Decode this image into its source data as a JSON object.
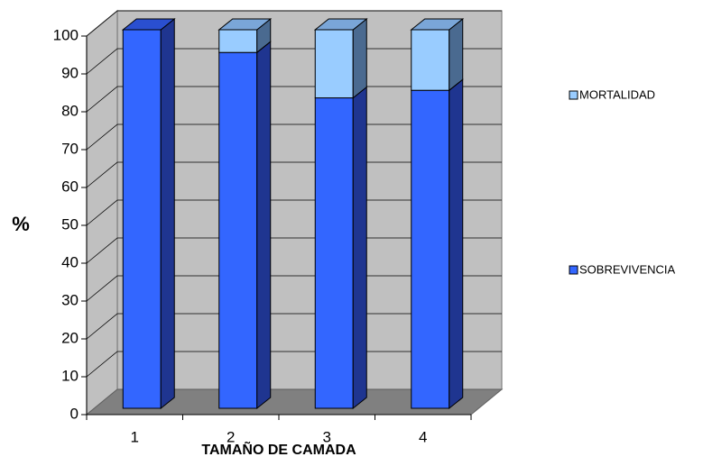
{
  "chart_data": {
    "type": "bar",
    "stacked": true,
    "style": "3d-column",
    "categories": [
      "1",
      "2",
      "3",
      "4"
    ],
    "series": [
      {
        "name": "SOBREVIVENCIA",
        "values": [
          100,
          94,
          82,
          84
        ],
        "color": "#3366ff",
        "side_color": "#1f3590",
        "top_color": "#2a4fd0"
      },
      {
        "name": "MORTALIDAD",
        "values": [
          0,
          6,
          18,
          16
        ],
        "color": "#99ccff",
        "side_color": "#4a6a90",
        "top_color": "#7aa6d8"
      }
    ],
    "xlabel": "TAMAÑO DE CAMADA",
    "ylabel": "%",
    "ylim": [
      0,
      100
    ],
    "yticks": [
      0,
      10,
      20,
      30,
      40,
      50,
      60,
      70,
      80,
      90,
      100
    ],
    "grid": true,
    "legend": "right",
    "colors": {
      "wall": "#c0c0c0",
      "floor": "#808080",
      "gridline": "#000000"
    }
  }
}
